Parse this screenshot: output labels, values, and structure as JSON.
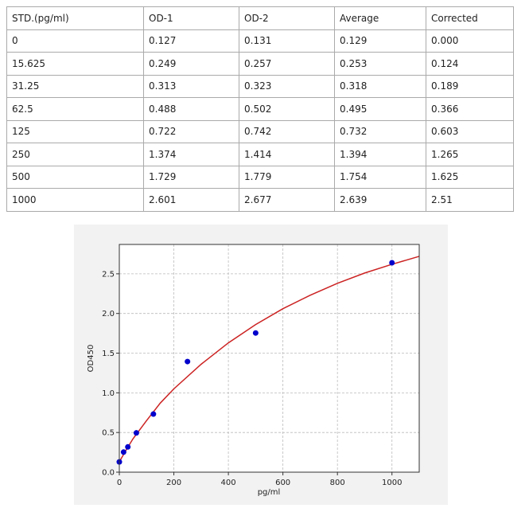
{
  "table": {
    "header": [
      "STD.(pg/ml)",
      "OD-1",
      "OD-2",
      "Average",
      "Corrected"
    ],
    "rows": [
      [
        "0",
        "0.127",
        "0.131",
        "0.129",
        "0.000"
      ],
      [
        "15.625",
        "0.249",
        "0.257",
        "0.253",
        "0.124"
      ],
      [
        "31.25",
        "0.313",
        "0.323",
        "0.318",
        "0.189"
      ],
      [
        "62.5",
        "0.488",
        "0.502",
        "0.495",
        "0.366"
      ],
      [
        "125",
        "0.722",
        "0.742",
        "0.732",
        "0.603"
      ],
      [
        "250",
        "1.374",
        "1.414",
        "1.394",
        "1.265"
      ],
      [
        "500",
        "1.729",
        "1.779",
        "1.754",
        "1.625"
      ],
      [
        "1000",
        "2.601",
        "2.677",
        "2.639",
        "2.51"
      ]
    ]
  },
  "chart_data": {
    "type": "scatter",
    "xlabel": "pg/ml",
    "ylabel": "OD450",
    "xlim": [
      0,
      1100
    ],
    "ylim": [
      0,
      2.87
    ],
    "xticks": [
      0,
      200,
      400,
      600,
      800,
      1000
    ],
    "yticks": [
      {
        "value": 0,
        "label": "0.0"
      },
      0.5,
      {
        "value": 1,
        "label": "1.0"
      },
      1.5,
      {
        "value": 2,
        "label": "2.0"
      },
      2.5
    ],
    "grid": true,
    "series": [
      {
        "mode": "markers",
        "color": "#0000cc",
        "x": [
          0,
          15.625,
          31.25,
          62.5,
          125,
          250,
          500,
          1000
        ],
        "values": [
          0.129,
          0.253,
          0.318,
          0.495,
          0.732,
          1.394,
          1.754,
          2.639
        ]
      },
      {
        "mode": "line",
        "color": "#cc2222",
        "x": [
          0,
          25,
          50,
          100,
          150,
          200,
          300,
          400,
          500,
          600,
          700,
          800,
          900,
          1000,
          1100
        ],
        "values": [
          0.13,
          0.28,
          0.42,
          0.65,
          0.87,
          1.05,
          1.36,
          1.63,
          1.86,
          2.06,
          2.23,
          2.38,
          2.51,
          2.62,
          2.72
        ]
      }
    ]
  }
}
